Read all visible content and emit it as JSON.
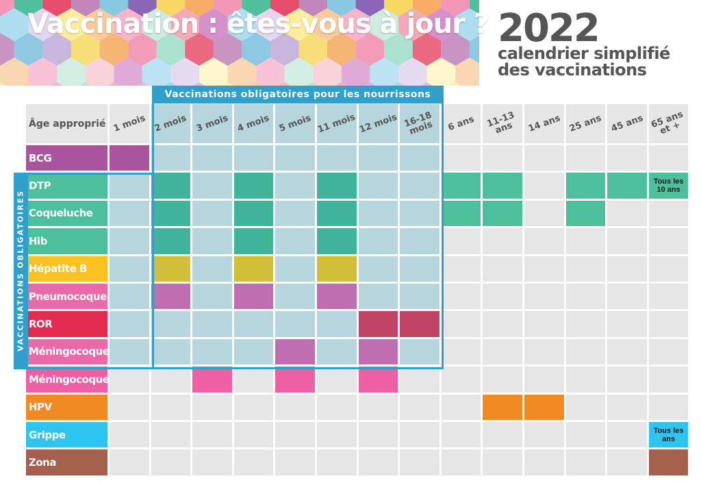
{
  "header": {
    "title": "Vaccination : êtes-vous à jour ?",
    "year": "2022",
    "subtitle_line1": "calendrier simplifié",
    "subtitle_line2": "des vaccinations"
  },
  "group_labels": {
    "infant": "Vaccinations obligatoires pour les nourrissons",
    "mandatory": "VACCINATIONS OBLIGATOIRES"
  },
  "table": {
    "age_header": "Âge approprié",
    "columns": [
      "1 mois",
      "2 mois",
      "3 mois",
      "4 mois",
      "5 mois",
      "11 mois",
      "12 mois",
      "16-18 mois",
      "6 ans",
      "11-13 ans",
      "14 ans",
      "25 ans",
      "45 ans",
      "65 ans et +"
    ],
    "rows": [
      {
        "name": "BCG",
        "color": "#a8559e",
        "cells": [
          1,
          0,
          0,
          0,
          0,
          0,
          0,
          0,
          0,
          0,
          0,
          0,
          0,
          0
        ]
      },
      {
        "name": "DTP",
        "color": "#4dbf9a",
        "cells": [
          0,
          1,
          0,
          1,
          0,
          1,
          0,
          0,
          1,
          1,
          0,
          1,
          1,
          0
        ],
        "note": "Tous les 10 ans"
      },
      {
        "name": "Coqueluche",
        "color": "#4dbf9a",
        "cells": [
          0,
          1,
          0,
          1,
          0,
          1,
          0,
          0,
          1,
          1,
          0,
          1,
          0,
          0
        ]
      },
      {
        "name": "Hib",
        "color": "#4dbf9a",
        "cells": [
          0,
          1,
          0,
          1,
          0,
          1,
          0,
          0,
          0,
          0,
          0,
          0,
          0,
          0
        ]
      },
      {
        "name": "Hépatite B",
        "color": "#fcc221",
        "cells": [
          0,
          1,
          0,
          1,
          0,
          1,
          0,
          0,
          0,
          0,
          0,
          0,
          0,
          0
        ]
      },
      {
        "name": "Pneumocoque",
        "color": "#e86aa9",
        "cells": [
          0,
          1,
          0,
          1,
          0,
          1,
          0,
          0,
          0,
          0,
          0,
          0,
          0,
          0
        ]
      },
      {
        "name": "ROR",
        "color": "#e22b4e",
        "cells": [
          0,
          0,
          0,
          0,
          0,
          0,
          1,
          1,
          0,
          0,
          0,
          0,
          0,
          0
        ]
      },
      {
        "name": "Méningocoque C",
        "color": "#e86aa9",
        "cells": [
          0,
          0,
          0,
          0,
          1,
          0,
          1,
          0,
          0,
          0,
          0,
          0,
          0,
          0
        ]
      },
      {
        "name": "Méningocoque B",
        "color": "#ef5fa4",
        "cells": [
          0,
          0,
          1,
          0,
          1,
          0,
          1,
          0,
          0,
          0,
          0,
          0,
          0,
          0
        ]
      },
      {
        "name": "HPV",
        "color": "#f28a24",
        "cells": [
          0,
          0,
          0,
          0,
          0,
          0,
          0,
          0,
          0,
          1,
          1,
          0,
          0,
          0
        ]
      },
      {
        "name": "Grippe",
        "color": "#2ec4f0",
        "cells": [
          0,
          0,
          0,
          0,
          0,
          0,
          0,
          0,
          0,
          0,
          0,
          0,
          0,
          0
        ],
        "note": "Tous les ans"
      },
      {
        "name": "Zona",
        "color": "#a3604c",
        "cells": [
          0,
          0,
          0,
          0,
          0,
          0,
          0,
          0,
          0,
          0,
          0,
          0,
          0,
          1
        ]
      }
    ]
  },
  "colors": {
    "empty": "#e6e6e6",
    "infant_zone": "#b7d5dd",
    "frame": "#2f9fcb",
    "dtp_infant": "#3fb49a",
    "hepb_infant": "#d1bf3a",
    "pneumo_infant": "#bf6eb1",
    "ror_infant": "#bf4567",
    "meningoc_infant": "#bf6eb1"
  }
}
